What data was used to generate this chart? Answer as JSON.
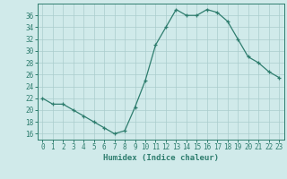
{
  "x": [
    0,
    1,
    2,
    3,
    4,
    5,
    6,
    7,
    8,
    9,
    10,
    11,
    12,
    13,
    14,
    15,
    16,
    17,
    18,
    19,
    20,
    21,
    22,
    23
  ],
  "y": [
    22,
    21,
    21,
    20,
    19,
    18,
    17,
    16,
    16.5,
    20.5,
    25,
    31,
    34,
    37,
    36,
    36,
    37,
    36.5,
    35,
    32,
    29,
    28,
    26.5,
    25.5
  ],
  "line_color": "#2e7d6e",
  "marker_color": "#2e7d6e",
  "bg_color": "#d0eaea",
  "grid_color": "#aacccc",
  "xlabel": "Humidex (Indice chaleur)",
  "ylim": [
    15,
    38
  ],
  "xlim": [
    -0.5,
    23.5
  ],
  "yticks": [
    16,
    18,
    20,
    22,
    24,
    26,
    28,
    30,
    32,
    34,
    36
  ],
  "xticks": [
    0,
    1,
    2,
    3,
    4,
    5,
    6,
    7,
    8,
    9,
    10,
    11,
    12,
    13,
    14,
    15,
    16,
    17,
    18,
    19,
    20,
    21,
    22,
    23
  ],
  "tick_labels": [
    "0",
    "1",
    "2",
    "3",
    "4",
    "5",
    "6",
    "7",
    "8",
    "9",
    "10",
    "11",
    "12",
    "13",
    "14",
    "15",
    "16",
    "17",
    "18",
    "19",
    "20",
    "21",
    "22",
    "23"
  ],
  "label_fontsize": 6.5,
  "tick_fontsize": 5.5
}
